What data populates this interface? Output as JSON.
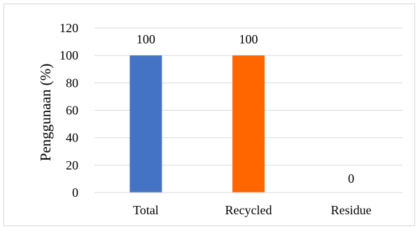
{
  "chart_data": {
    "type": "bar",
    "categories": [
      "Total",
      "Recycled",
      "Residue"
    ],
    "values": [
      100,
      100,
      0
    ],
    "data_labels": [
      "100",
      "100",
      "0"
    ],
    "colors": [
      "#4472c4",
      "#ff6600",
      "#a5a5a5"
    ],
    "title": "",
    "xlabel": "",
    "ylabel": "Penggunaan (%)",
    "ylim": [
      0,
      120
    ],
    "yticks": [
      0,
      20,
      40,
      60,
      80,
      100,
      120
    ],
    "grid": true,
    "gridColor": "#d9d9d9",
    "legend": "none"
  }
}
